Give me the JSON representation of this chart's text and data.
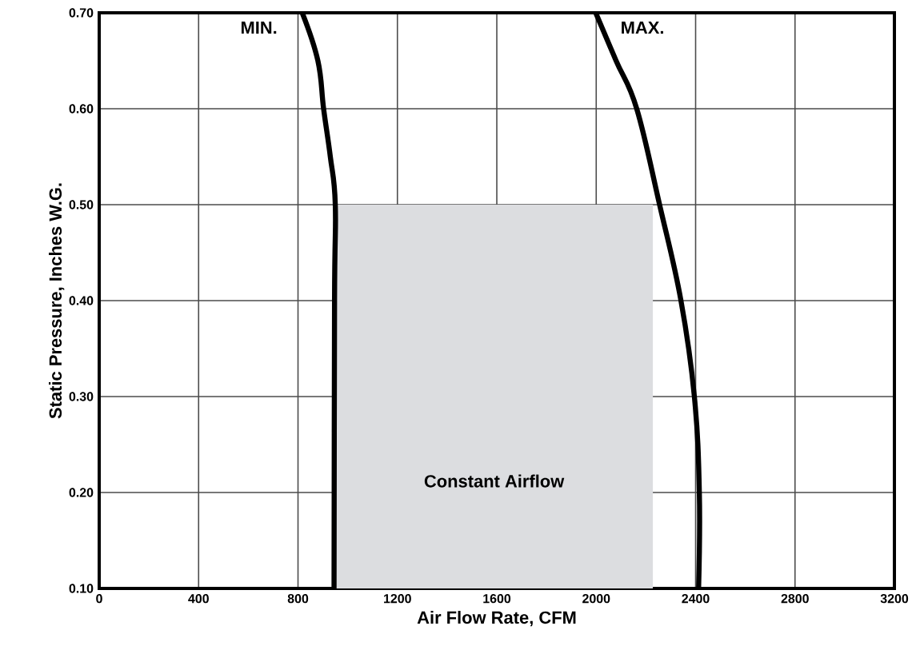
{
  "chart_data": {
    "type": "line",
    "xlabel": "Air Flow Rate, CFM",
    "ylabel": "Static Pressure, Inches W.G.",
    "xlim": [
      0,
      3200
    ],
    "ylim": [
      0.1,
      0.7
    ],
    "xticks": [
      0,
      400,
      800,
      1200,
      1600,
      2000,
      2400,
      2800,
      3200
    ],
    "yticks": [
      {
        "value": 0.1,
        "label": "0.10"
      },
      {
        "value": 0.2,
        "label": "0.20"
      },
      {
        "value": 0.3,
        "label": "0.30"
      },
      {
        "value": 0.4,
        "label": "0.40"
      },
      {
        "value": 0.5,
        "label": "0.50"
      },
      {
        "value": 0.6,
        "label": "0.60"
      },
      {
        "value": 0.7,
        "label": "0.70"
      }
    ],
    "grid": true,
    "series": [
      {
        "type": "area",
        "color": "#dcdde0",
        "x": [
          950,
          2228
        ],
        "values": [
          0.5,
          0.5
        ]
      },
      {
        "name": "MIN.",
        "color": "#000000",
        "x": [
          817,
          880,
          903,
          930,
          950,
          947,
          945
        ],
        "values": [
          0.7,
          0.65,
          0.6,
          0.55,
          0.5,
          0.4,
          0.1
        ]
      },
      {
        "name": "MAX.",
        "color": "#000000",
        "x": [
          1998,
          2080,
          2163,
          2255,
          2341,
          2395,
          2415,
          2412
        ],
        "values": [
          0.7,
          0.65,
          0.6,
          0.5,
          0.4,
          0.3,
          0.2,
          0.1
        ]
      }
    ],
    "annotations": [
      "Constant Airflow"
    ]
  }
}
